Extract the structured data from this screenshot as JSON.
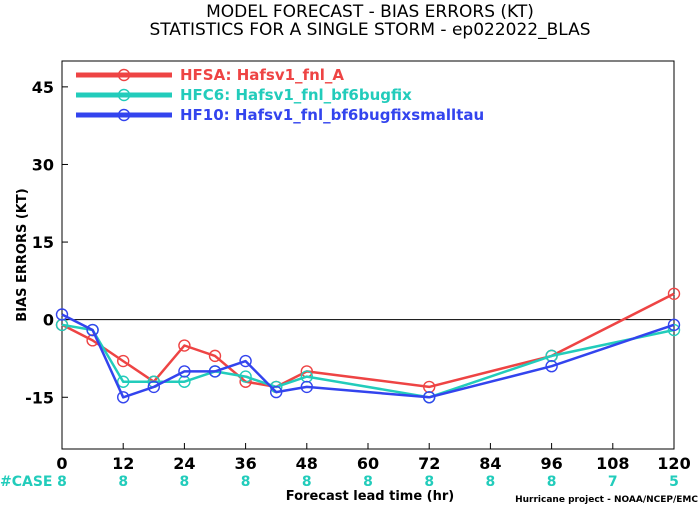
{
  "chart_data": {
    "type": "line",
    "title": "MODEL FORECAST - BIAS ERRORS (KT)",
    "subtitle": "STATISTICS FOR A SINGLE STORM - ep022022_BLAS",
    "xlabel": "Forecast lead time (hr)",
    "ylabel": "BIAS ERRORS (KT)",
    "xlim": [
      0,
      120
    ],
    "ylim": [
      -25,
      50
    ],
    "x_ticks": [
      0,
      12,
      24,
      36,
      48,
      60,
      72,
      84,
      96,
      108,
      120
    ],
    "y_ticks": [
      -15,
      0,
      15,
      30,
      45
    ],
    "zero_line": 0,
    "grid": false,
    "legend_position": "top-left",
    "series": [
      {
        "name": "HFSA: Hafsv1_fnl_A",
        "color": "#ee4444",
        "points": [
          [
            0,
            -1
          ],
          [
            6,
            -4
          ],
          [
            12,
            -8
          ],
          [
            18,
            -12
          ],
          [
            24,
            -5
          ],
          [
            30,
            -7
          ],
          [
            36,
            -12
          ],
          [
            42,
            -13
          ],
          [
            48,
            -10
          ],
          [
            72,
            -13
          ],
          [
            96,
            -7
          ],
          [
            120,
            5
          ]
        ]
      },
      {
        "name": "HFC6: Hafsv1_fnl_bf6bugfix",
        "color": "#22ccbb",
        "points": [
          [
            0,
            -1
          ],
          [
            6,
            -2
          ],
          [
            12,
            -12
          ],
          [
            18,
            -12
          ],
          [
            24,
            -12
          ],
          [
            30,
            -10
          ],
          [
            36,
            -11
          ],
          [
            42,
            -13
          ],
          [
            48,
            -11
          ],
          [
            72,
            -15
          ],
          [
            96,
            -7
          ],
          [
            120,
            -2
          ]
        ]
      },
      {
        "name": "HF10: Hafsv1_fnl_bf6bugfixsmalltau",
        "color": "#3344ee",
        "points": [
          [
            0,
            1
          ],
          [
            6,
            -2
          ],
          [
            12,
            -15
          ],
          [
            18,
            -13
          ],
          [
            24,
            -10
          ],
          [
            30,
            -10
          ],
          [
            36,
            -8
          ],
          [
            42,
            -14
          ],
          [
            48,
            -13
          ],
          [
            72,
            -15
          ],
          [
            96,
            -9
          ],
          [
            120,
            -1
          ]
        ]
      }
    ],
    "case_label": "#CASE",
    "case_color": "#22ccbb",
    "case_counts": [
      {
        "x": 0,
        "n": "8"
      },
      {
        "x": 12,
        "n": "8"
      },
      {
        "x": 24,
        "n": "8"
      },
      {
        "x": 36,
        "n": "8"
      },
      {
        "x": 48,
        "n": "8"
      },
      {
        "x": 60,
        "n": "8"
      },
      {
        "x": 72,
        "n": "8"
      },
      {
        "x": 84,
        "n": "8"
      },
      {
        "x": 96,
        "n": "8"
      },
      {
        "x": 108,
        "n": "7"
      },
      {
        "x": 120,
        "n": "5"
      }
    ],
    "credit": "Hurricane project - NOAA/NCEP/EMC"
  }
}
